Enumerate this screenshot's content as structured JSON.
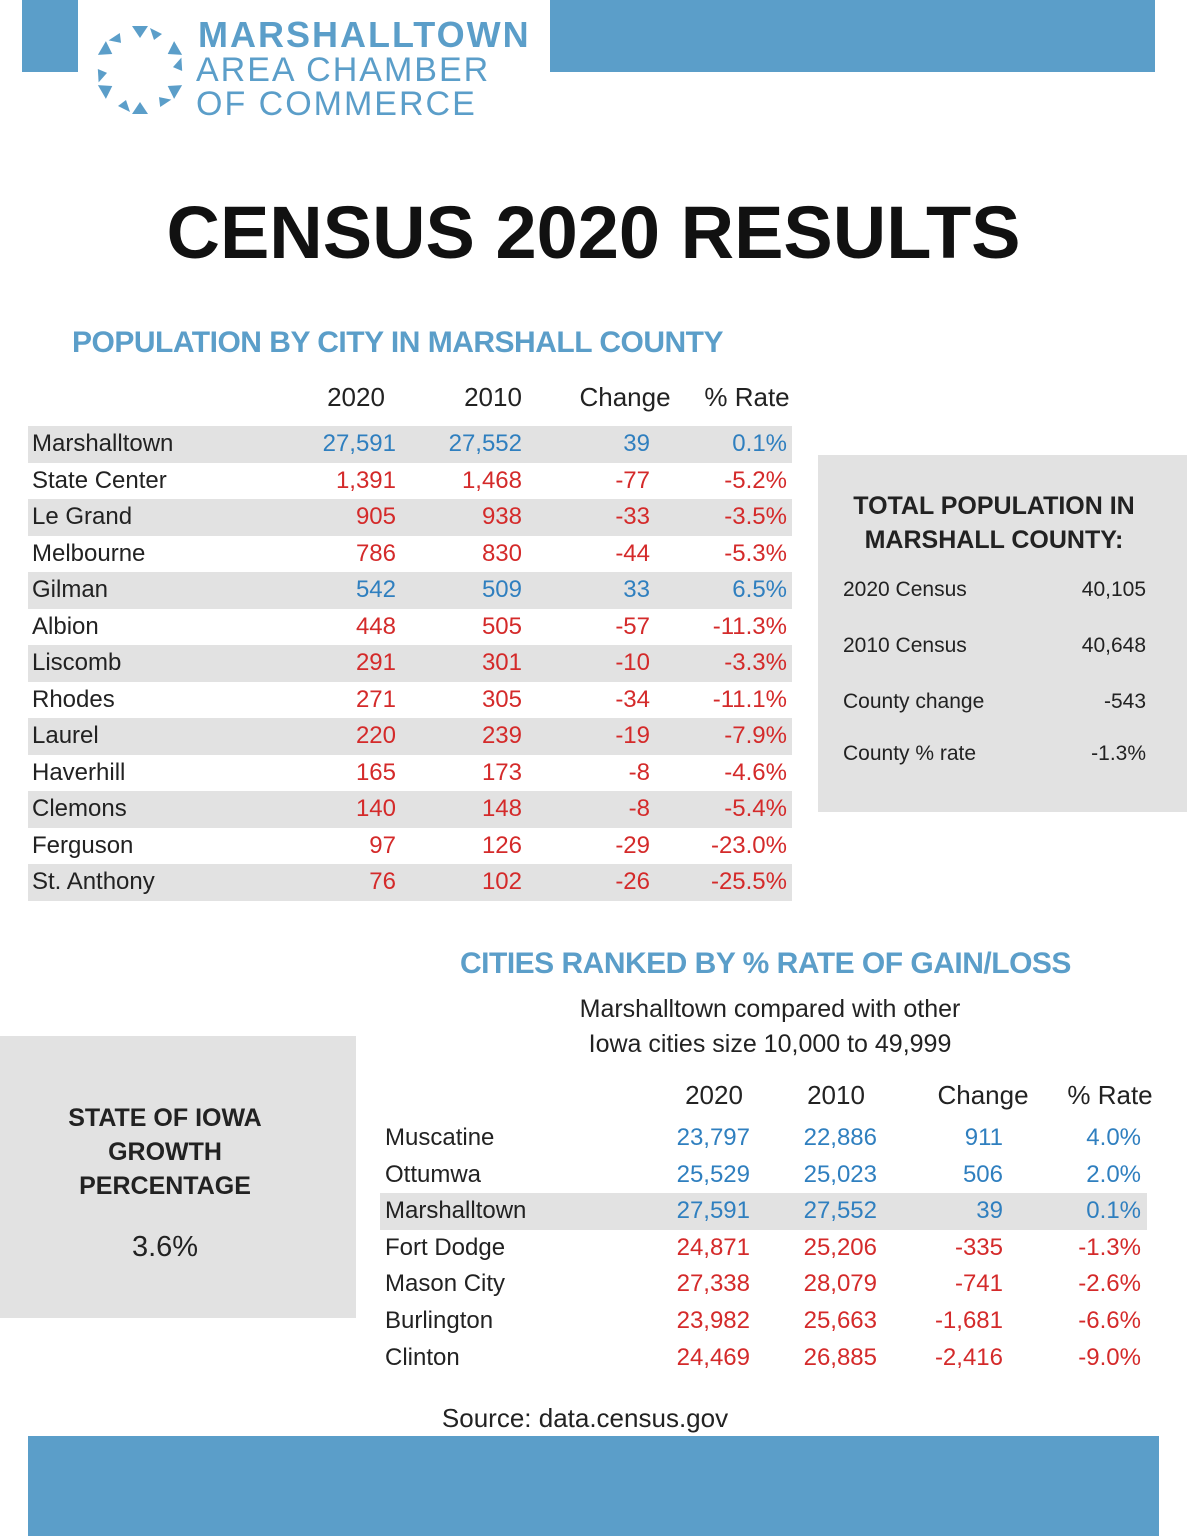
{
  "header": {
    "line1": "MARSHALLTOWN",
    "line2": "AREA CHAMBER",
    "line3": "OF COMMERCE"
  },
  "title": "CENSUS 2020 RESULTS",
  "county_table": {
    "heading": "POPULATION BY CITY IN MARSHALL COUNTY",
    "columns": [
      "2020",
      "2010",
      "Change",
      "% Rate"
    ],
    "rows": [
      [
        "Marshalltown",
        "27,591",
        "27,552",
        "39",
        "0.1%"
      ],
      [
        "State Center",
        "1,391",
        "1,468",
        "-77",
        "-5.2%"
      ],
      [
        "Le Grand",
        "905",
        "938",
        "-33",
        "-3.5%"
      ],
      [
        "Melbourne",
        "786",
        "830",
        "-44",
        "-5.3%"
      ],
      [
        "Gilman",
        "542",
        "509",
        "33",
        "6.5%"
      ],
      [
        "Albion",
        "448",
        "505",
        "-57",
        "-11.3%"
      ],
      [
        "Liscomb",
        "291",
        "301",
        "-10",
        "-3.3%"
      ],
      [
        "Rhodes",
        "271",
        "305",
        "-34",
        "-11.1%"
      ],
      [
        "Laurel",
        "220",
        "239",
        "-19",
        "-7.9%"
      ],
      [
        "Haverhill",
        "165",
        "173",
        "-8",
        "-4.6%"
      ],
      [
        "Clemons",
        "140",
        "148",
        "-8",
        "-5.4%"
      ],
      [
        "Ferguson",
        "97",
        "126",
        "-29",
        "-23.0%"
      ],
      [
        "St. Anthony",
        "76",
        "102",
        "-26",
        "-25.5%"
      ]
    ]
  },
  "totals": {
    "heading_lines": [
      "TOTAL POPULATION IN",
      "MARSHALL COUNTY:"
    ],
    "rows": [
      [
        "2020 Census",
        "40,105"
      ],
      [
        "2010 Census",
        "40,648"
      ],
      [
        "County change",
        "-543"
      ],
      [
        "County % rate",
        "-1.3%"
      ]
    ]
  },
  "state": {
    "heading_lines": [
      "STATE OF IOWA",
      "GROWTH",
      "PERCENTAGE"
    ],
    "value": "3.6%"
  },
  "ranked_table": {
    "heading": "CITIES RANKED BY % RATE OF GAIN/LOSS",
    "subtitle_lines": [
      "Marshalltown compared with other",
      "Iowa cities size 10,000 to 49,999"
    ],
    "columns": [
      "2020",
      "2010",
      "Change",
      "% Rate"
    ],
    "highlight_row": 2,
    "rows": [
      [
        "Muscatine",
        "23,797",
        "22,886",
        "911",
        "4.0%"
      ],
      [
        "Ottumwa",
        "25,529",
        "25,023",
        "506",
        "2.0%"
      ],
      [
        "Marshalltown",
        "27,591",
        "27,552",
        "39",
        "0.1%"
      ],
      [
        "Fort Dodge",
        "24,871",
        "25,206",
        "-335",
        "-1.3%"
      ],
      [
        "Mason City",
        "27,338",
        "28,079",
        "-741",
        "-2.6%"
      ],
      [
        "Burlington",
        "23,982",
        "25,663",
        "-1,681",
        "-6.6%"
      ],
      [
        "Clinton",
        "24,469",
        "26,885",
        "-2,416",
        "-9.0%"
      ]
    ]
  },
  "source": "Source: data.census.gov"
}
